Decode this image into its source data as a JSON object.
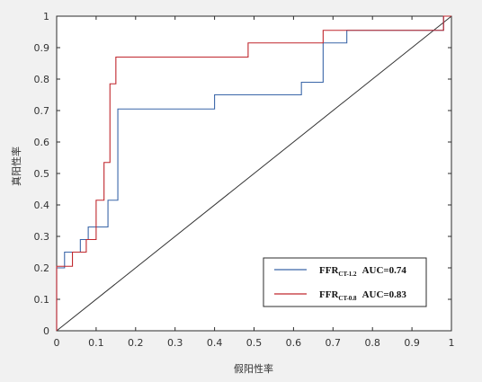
{
  "chart_data": {
    "type": "line",
    "xlabel": "假阳性率",
    "ylabel": "真阳性率",
    "xlim": [
      0,
      1
    ],
    "ylim": [
      0,
      1
    ],
    "x_ticks": [
      "0",
      "0.1",
      "0.2",
      "0.3",
      "0.4",
      "0.5",
      "0.6",
      "0.7",
      "0.8",
      "0.9",
      "1"
    ],
    "y_ticks": [
      "0",
      "0.1",
      "0.2",
      "0.3",
      "0.4",
      "0.5",
      "0.6",
      "0.7",
      "0.8",
      "0.9",
      "1"
    ],
    "grid": false,
    "legend_position": "bottom-right",
    "series": [
      {
        "name_main": "FFR",
        "name_sub": "CT-1.2",
        "auc_label": "AUC=0.74",
        "color": "#3a66a8",
        "x": [
          0,
          0,
          0.02,
          0.02,
          0.06,
          0.06,
          0.08,
          0.08,
          0.13,
          0.13,
          0.155,
          0.155,
          0.4,
          0.4,
          0.62,
          0.62,
          0.675,
          0.675,
          0.735,
          0.735,
          0.98,
          0.98,
          1
        ],
        "y": [
          0,
          0.2,
          0.2,
          0.25,
          0.25,
          0.29,
          0.29,
          0.33,
          0.33,
          0.415,
          0.415,
          0.705,
          0.705,
          0.75,
          0.75,
          0.79,
          0.79,
          0.915,
          0.915,
          0.955,
          0.955,
          1,
          1
        ]
      },
      {
        "name_main": "FFR",
        "name_sub": "CT-0.8",
        "auc_label": "AUC=0.83",
        "color": "#c0272d",
        "x": [
          0,
          0,
          0.04,
          0.04,
          0.075,
          0.075,
          0.1,
          0.1,
          0.12,
          0.12,
          0.135,
          0.135,
          0.15,
          0.15,
          0.485,
          0.485,
          0.675,
          0.675,
          0.98,
          0.98,
          1
        ],
        "y": [
          0,
          0.205,
          0.205,
          0.25,
          0.25,
          0.29,
          0.29,
          0.415,
          0.415,
          0.535,
          0.535,
          0.785,
          0.785,
          0.87,
          0.87,
          0.915,
          0.915,
          0.955,
          0.955,
          1,
          1
        ]
      }
    ],
    "reference_line": {
      "x": [
        0,
        1
      ],
      "y": [
        0,
        1
      ],
      "color": "#333333"
    }
  }
}
